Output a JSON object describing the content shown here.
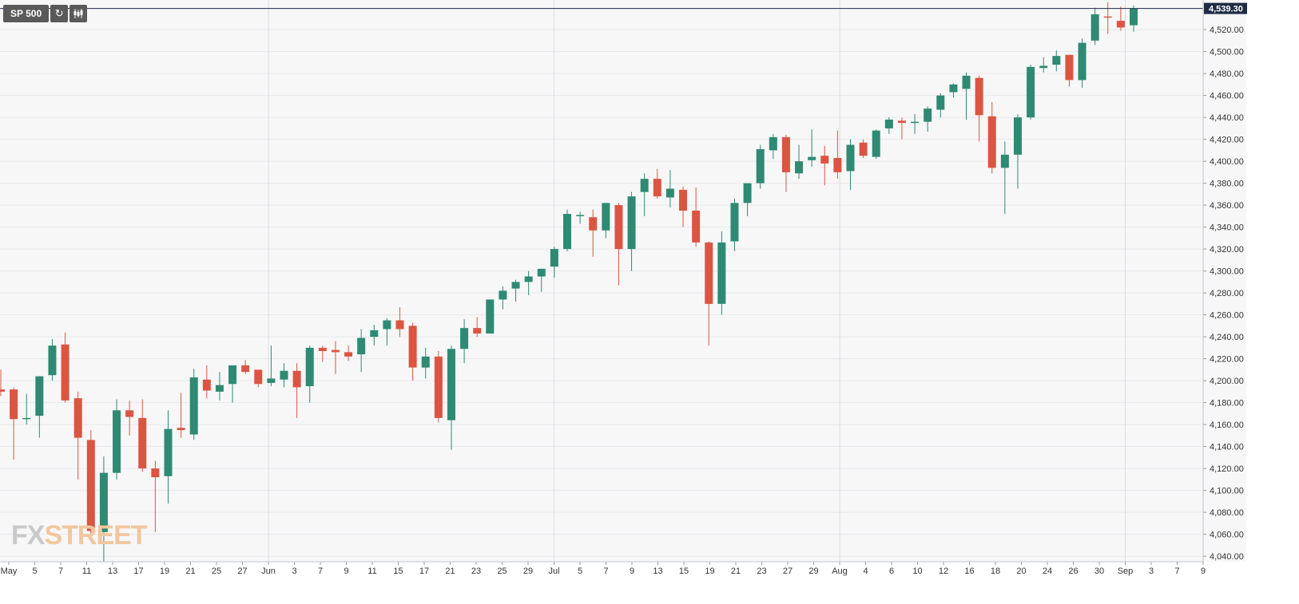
{
  "toolbar": {
    "symbol": "SP 500",
    "refresh_icon": "refresh-icon",
    "chart_type_icon": "candlestick-icon"
  },
  "logo": {
    "fx": "FX",
    "street": "STREET"
  },
  "colors": {
    "up": "#2e8a72",
    "down": "#db5542",
    "grid": "#e7e9ec",
    "background": "#f7f7f8",
    "axis_text": "#333333",
    "last_price_line": "#1f2b44"
  },
  "chart_data": {
    "type": "candlestick",
    "symbol": "SP 500",
    "last_price": "4,539.30",
    "ylim": [
      4035,
      4547
    ],
    "y_ticks": [
      "4,040.00",
      "4,060.00",
      "4,080.00",
      "4,100.00",
      "4,120.00",
      "4,140.00",
      "4,160.00",
      "4,180.00",
      "4,200.00",
      "4,220.00",
      "4,240.00",
      "4,260.00",
      "4,280.00",
      "4,300.00",
      "4,320.00",
      "4,340.00",
      "4,360.00",
      "4,380.00",
      "4,400.00",
      "4,420.00",
      "4,440.00",
      "4,460.00",
      "4,480.00",
      "4,500.00",
      "4,520.00"
    ],
    "x_ticks": [
      "May",
      "5",
      "7",
      "11",
      "13",
      "17",
      "19",
      "21",
      "25",
      "27",
      "Jun",
      "3",
      "7",
      "9",
      "11",
      "15",
      "17",
      "21",
      "23",
      "25",
      "29",
      "Jul",
      "5",
      "7",
      "9",
      "13",
      "15",
      "19",
      "21",
      "23",
      "27",
      "29",
      "Aug",
      "4",
      "6",
      "10",
      "12",
      "16",
      "18",
      "20",
      "24",
      "26",
      "30",
      "Sep",
      "3",
      "7",
      "9"
    ],
    "grid": true,
    "candles": [
      {
        "o": 4192,
        "h": 4210,
        "l": 4186,
        "c": 4190
      },
      {
        "o": 4192,
        "h": 4194,
        "l": 4128,
        "c": 4165
      },
      {
        "o": 4166,
        "h": 4188,
        "l": 4160,
        "c": 4166
      },
      {
        "o": 4168,
        "h": 4204,
        "l": 4148,
        "c": 4204
      },
      {
        "o": 4205,
        "h": 4238,
        "l": 4200,
        "c": 4232
      },
      {
        "o": 4233,
        "h": 4244,
        "l": 4180,
        "c": 4182
      },
      {
        "o": 4184,
        "h": 4190,
        "l": 4110,
        "c": 4148
      },
      {
        "o": 4146,
        "h": 4155,
        "l": 4060,
        "c": 4063
      },
      {
        "o": 4062,
        "h": 4131,
        "l": 4035,
        "c": 4116
      },
      {
        "o": 4116,
        "h": 4183,
        "l": 4110,
        "c": 4173
      },
      {
        "o": 4173,
        "h": 4182,
        "l": 4150,
        "c": 4167
      },
      {
        "o": 4166,
        "h": 4183,
        "l": 4117,
        "c": 4120
      },
      {
        "o": 4120,
        "h": 4127,
        "l": 4062,
        "c": 4112
      },
      {
        "o": 4113,
        "h": 4173,
        "l": 4088,
        "c": 4156
      },
      {
        "o": 4157,
        "h": 4189,
        "l": 4148,
        "c": 4155
      },
      {
        "o": 4151,
        "h": 4211,
        "l": 4146,
        "c": 4203
      },
      {
        "o": 4201,
        "h": 4214,
        "l": 4184,
        "c": 4191
      },
      {
        "o": 4190,
        "h": 4208,
        "l": 4182,
        "c": 4196
      },
      {
        "o": 4197,
        "h": 4214,
        "l": 4180,
        "c": 4214
      },
      {
        "o": 4214,
        "h": 4219,
        "l": 4206,
        "c": 4208
      },
      {
        "o": 4210,
        "h": 4210,
        "l": 4194,
        "c": 4197
      },
      {
        "o": 4198,
        "h": 4232,
        "l": 4195,
        "c": 4202
      },
      {
        "o": 4201,
        "h": 4216,
        "l": 4194,
        "c": 4209
      },
      {
        "o": 4209,
        "h": 4216,
        "l": 4166,
        "c": 4194
      },
      {
        "o": 4195,
        "h": 4232,
        "l": 4180,
        "c": 4230
      },
      {
        "o": 4230,
        "h": 4232,
        "l": 4217,
        "c": 4227
      },
      {
        "o": 4228,
        "h": 4236,
        "l": 4206,
        "c": 4226
      },
      {
        "o": 4226,
        "h": 4232,
        "l": 4218,
        "c": 4222
      },
      {
        "o": 4224,
        "h": 4247,
        "l": 4208,
        "c": 4239
      },
      {
        "o": 4240,
        "h": 4251,
        "l": 4232,
        "c": 4246
      },
      {
        "o": 4247,
        "h": 4257,
        "l": 4232,
        "c": 4255
      },
      {
        "o": 4255,
        "h": 4267,
        "l": 4240,
        "c": 4247
      },
      {
        "o": 4250,
        "h": 4253,
        "l": 4200,
        "c": 4212
      },
      {
        "o": 4212,
        "h": 4230,
        "l": 4202,
        "c": 4222
      },
      {
        "o": 4222,
        "h": 4227,
        "l": 4162,
        "c": 4166
      },
      {
        "o": 4164,
        "h": 4232,
        "l": 4137,
        "c": 4229
      },
      {
        "o": 4229,
        "h": 4256,
        "l": 4216,
        "c": 4248
      },
      {
        "o": 4248,
        "h": 4258,
        "l": 4240,
        "c": 4243
      },
      {
        "o": 4243,
        "h": 4274,
        "l": 4243,
        "c": 4274
      },
      {
        "o": 4274,
        "h": 4286,
        "l": 4265,
        "c": 4282
      },
      {
        "o": 4284,
        "h": 4292,
        "l": 4272,
        "c": 4290
      },
      {
        "o": 4290,
        "h": 4300,
        "l": 4278,
        "c": 4295
      },
      {
        "o": 4295,
        "h": 4302,
        "l": 4281,
        "c": 4302
      },
      {
        "o": 4304,
        "h": 4322,
        "l": 4294,
        "c": 4320
      },
      {
        "o": 4320,
        "h": 4356,
        "l": 4318,
        "c": 4352
      },
      {
        "o": 4350,
        "h": 4354,
        "l": 4343,
        "c": 4351
      },
      {
        "o": 4349,
        "h": 4356,
        "l": 4313,
        "c": 4337
      },
      {
        "o": 4337,
        "h": 4362,
        "l": 4330,
        "c": 4362
      },
      {
        "o": 4360,
        "h": 4362,
        "l": 4287,
        "c": 4320
      },
      {
        "o": 4320,
        "h": 4372,
        "l": 4300,
        "c": 4368
      },
      {
        "o": 4372,
        "h": 4389,
        "l": 4350,
        "c": 4384
      },
      {
        "o": 4384,
        "h": 4393,
        "l": 4366,
        "c": 4368
      },
      {
        "o": 4367,
        "h": 4392,
        "l": 4358,
        "c": 4375
      },
      {
        "o": 4374,
        "h": 4377,
        "l": 4340,
        "c": 4355
      },
      {
        "o": 4355,
        "h": 4376,
        "l": 4322,
        "c": 4326
      },
      {
        "o": 4326,
        "h": 4327,
        "l": 4232,
        "c": 4270
      },
      {
        "o": 4270,
        "h": 4336,
        "l": 4260,
        "c": 4326
      },
      {
        "o": 4327,
        "h": 4366,
        "l": 4318,
        "c": 4362
      },
      {
        "o": 4362,
        "h": 4380,
        "l": 4350,
        "c": 4380
      },
      {
        "o": 4380,
        "h": 4415,
        "l": 4375,
        "c": 4411
      },
      {
        "o": 4410,
        "h": 4425,
        "l": 4402,
        "c": 4422
      },
      {
        "o": 4422,
        "h": 4424,
        "l": 4372,
        "c": 4390
      },
      {
        "o": 4389,
        "h": 4415,
        "l": 4384,
        "c": 4400
      },
      {
        "o": 4401,
        "h": 4429,
        "l": 4395,
        "c": 4404
      },
      {
        "o": 4405,
        "h": 4414,
        "l": 4378,
        "c": 4398
      },
      {
        "o": 4403,
        "h": 4428,
        "l": 4384,
        "c": 4390
      },
      {
        "o": 4391,
        "h": 4420,
        "l": 4374,
        "c": 4415
      },
      {
        "o": 4417,
        "h": 4420,
        "l": 4403,
        "c": 4405
      },
      {
        "o": 4404,
        "h": 4429,
        "l": 4402,
        "c": 4428
      },
      {
        "o": 4430,
        "h": 4440,
        "l": 4425,
        "c": 4438
      },
      {
        "o": 4437,
        "h": 4440,
        "l": 4420,
        "c": 4435
      },
      {
        "o": 4435,
        "h": 4443,
        "l": 4425,
        "c": 4436
      },
      {
        "o": 4436,
        "h": 4450,
        "l": 4427,
        "c": 4448
      },
      {
        "o": 4447,
        "h": 4462,
        "l": 4440,
        "c": 4460
      },
      {
        "o": 4463,
        "h": 4471,
        "l": 4458,
        "c": 4470
      },
      {
        "o": 4466,
        "h": 4481,
        "l": 4438,
        "c": 4478
      },
      {
        "o": 4476,
        "h": 4478,
        "l": 4418,
        "c": 4442
      },
      {
        "o": 4441,
        "h": 4454,
        "l": 4389,
        "c": 4394
      },
      {
        "o": 4394,
        "h": 4418,
        "l": 4352,
        "c": 4406
      },
      {
        "o": 4406,
        "h": 4443,
        "l": 4375,
        "c": 4440
      },
      {
        "o": 4440,
        "h": 4488,
        "l": 4438,
        "c": 4486
      },
      {
        "o": 4485,
        "h": 4495,
        "l": 4481,
        "c": 4487
      },
      {
        "o": 4488,
        "h": 4501,
        "l": 4482,
        "c": 4496
      },
      {
        "o": 4497,
        "h": 4497,
        "l": 4468,
        "c": 4474
      },
      {
        "o": 4474,
        "h": 4512,
        "l": 4467,
        "c": 4508
      },
      {
        "o": 4510,
        "h": 4540,
        "l": 4506,
        "c": 4534
      },
      {
        "o": 4532,
        "h": 4545,
        "l": 4516,
        "c": 4531
      },
      {
        "o": 4528,
        "h": 4541,
        "l": 4519,
        "c": 4522
      },
      {
        "o": 4524,
        "h": 4542,
        "l": 4518,
        "c": 4539
      }
    ]
  }
}
